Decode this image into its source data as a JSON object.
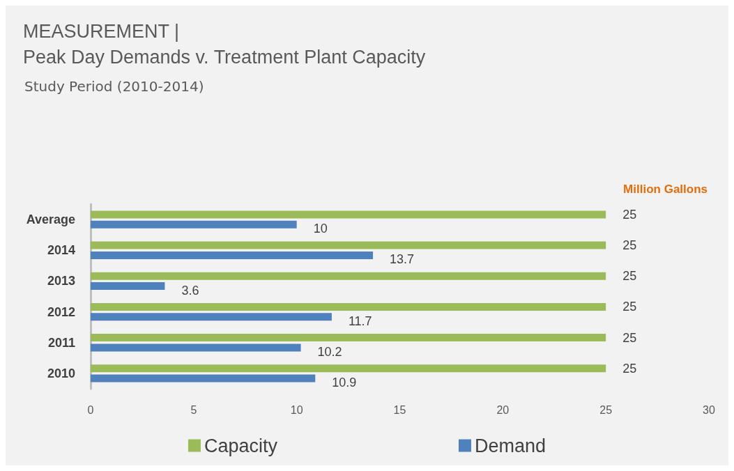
{
  "chart_data": {
    "type": "bar",
    "orientation": "horizontal",
    "title": "MEASUREMENT |",
    "subtitle": "Peak Day Demands v. Treatment Plant Capacity",
    "annotations": [
      "Study Period (2010-2014)"
    ],
    "xlabel": "Million Gallons",
    "categories": [
      "Average",
      "2014",
      "2013",
      "2012",
      "2011",
      "2010"
    ],
    "series": [
      {
        "name": "Capacity",
        "color": "#9bbb59",
        "values": [
          25,
          25,
          25,
          25,
          25,
          25
        ]
      },
      {
        "name": "Demand",
        "color": "#4f81bd",
        "values": [
          10,
          13.7,
          3.6,
          11.7,
          10.2,
          10.9
        ]
      }
    ],
    "xlim": [
      0,
      30
    ],
    "xticks": [
      0,
      5,
      10,
      15,
      20,
      25,
      30
    ],
    "grid": false,
    "legend": "bottom",
    "data_labels": true
  }
}
